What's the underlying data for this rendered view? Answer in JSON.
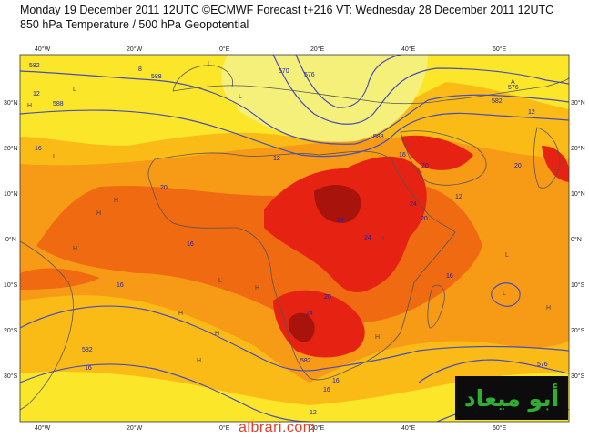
{
  "header": {
    "line1": "Monday 19 December 2011 12UTC ©ECMWF Forecast t+216 VT: Wednesday 28 December 2011 12UTC",
    "line2": "850 hPa Temperature / 500 hPa Geopotential"
  },
  "axes": {
    "lon_labels": [
      "40°W",
      "20°W",
      "0°E",
      "20°E",
      "40°E",
      "60°E"
    ],
    "lat_labels": [
      "30°N",
      "20°N",
      "10°N",
      "0°N",
      "10°S",
      "20°S",
      "30°S"
    ]
  },
  "contour_labels": [
    "582",
    "588",
    "570",
    "576",
    "588",
    "582",
    "588",
    "576",
    "582",
    "582",
    "576",
    "576"
  ],
  "temperature_labels": [
    "12",
    "16",
    "8",
    "12",
    "20",
    "24",
    "24",
    "20",
    "24",
    "16",
    "12",
    "20",
    "16",
    "16",
    "16",
    "20",
    "24",
    "20",
    "16",
    "12",
    "16",
    "12",
    "16"
  ],
  "pressure_centres": [
    "L",
    "H",
    "L",
    "H",
    "H",
    "H",
    "L",
    "H",
    "H",
    "L",
    "L",
    "H",
    "H",
    "H",
    "L",
    "L",
    "H",
    "L",
    "A"
  ],
  "colors": {
    "temp_lt8": "#f5f07a",
    "temp_8_12": "#fbe62a",
    "temp_12_16": "#fbbb17",
    "temp_16_20": "#f79a16",
    "temp_20_24": "#f06a12",
    "temp_24_28": "#e62312",
    "temp_gt28": "#a8140c",
    "geopotential": "#4a4fb8",
    "coast": "#555555"
  },
  "watermark": "albrari.com",
  "logo_text": "أبو ميعاد"
}
